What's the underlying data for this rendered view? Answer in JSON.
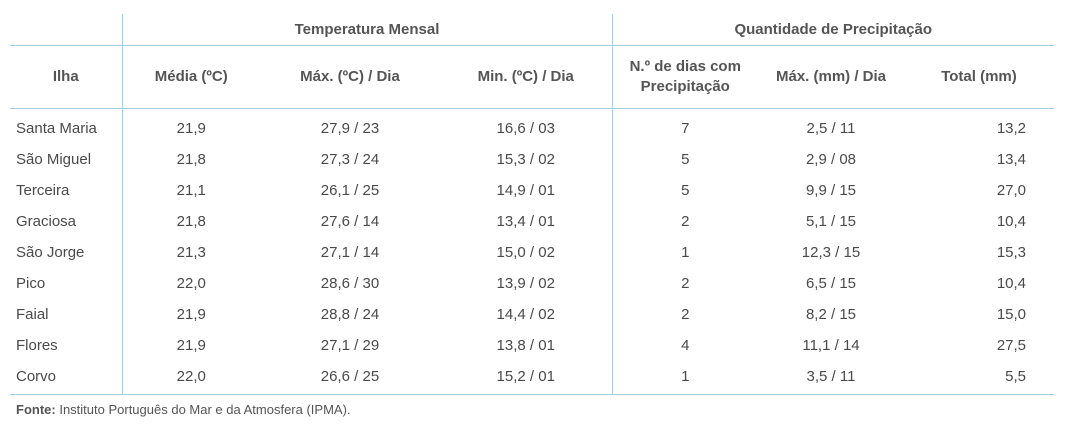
{
  "table": {
    "group_headers": {
      "temperature": "Temperatura Mensal",
      "precipitation": "Quantidade de Precipitação"
    },
    "column_headers": {
      "island": "Ilha",
      "avg": "Média (ºC)",
      "max": "Máx. (ºC) / Dia",
      "min": "Min. (ºC) / Dia",
      "rain_days_line1": "N.º de dias com",
      "rain_days_line2": "Precipitação",
      "rain_max": "Máx. (mm) / Dia",
      "total": "Total (mm)"
    },
    "rows": [
      {
        "island": "Santa Maria",
        "avg": "21,9",
        "max": "27,9 / 23",
        "min": "16,6 / 03",
        "days": "7",
        "rain_max": "2,5 / 11",
        "total": "13,2"
      },
      {
        "island": "São Miguel",
        "avg": "21,8",
        "max": "27,3 / 24",
        "min": "15,3 / 02",
        "days": "5",
        "rain_max": "2,9 / 08",
        "total": "13,4"
      },
      {
        "island": "Terceira",
        "avg": "21,1",
        "max": "26,1 / 25",
        "min": "14,9 / 01",
        "days": "5",
        "rain_max": "9,9 / 15",
        "total": "27,0"
      },
      {
        "island": "Graciosa",
        "avg": "21,8",
        "max": "27,6 / 14",
        "min": "13,4 / 01",
        "days": "2",
        "rain_max": "5,1 / 15",
        "total": "10,4"
      },
      {
        "island": "São Jorge",
        "avg": "21,3",
        "max": "27,1 / 14",
        "min": "15,0 / 02",
        "days": "1",
        "rain_max": "12,3 / 15",
        "total": "15,3"
      },
      {
        "island": "Pico",
        "avg": "22,0",
        "max": "28,6 / 30",
        "min": "13,9 / 02",
        "days": "2",
        "rain_max": "6,5 / 15",
        "total": "10,4"
      },
      {
        "island": "Faial",
        "avg": "21,9",
        "max": "28,8 / 24",
        "min": "14,4 / 02",
        "days": "2",
        "rain_max": "8,2 / 15",
        "total": "15,0"
      },
      {
        "island": "Flores",
        "avg": "21,9",
        "max": "27,1 / 29",
        "min": "13,8 / 01",
        "days": "4",
        "rain_max": "11,1 / 14",
        "total": "27,5"
      },
      {
        "island": "Corvo",
        "avg": "22,0",
        "max": "26,6 / 25",
        "min": "15,2 / 01",
        "days": "1",
        "rain_max": "3,5 / 11",
        "total": "5,5"
      }
    ]
  },
  "source": {
    "label": "Fonte:",
    "text": " Instituto Português do Mar e da Atmosfera (IPMA)."
  },
  "colors": {
    "rule": "#a9cde0",
    "text": "#4a4a4a",
    "header_text": "#555555"
  }
}
